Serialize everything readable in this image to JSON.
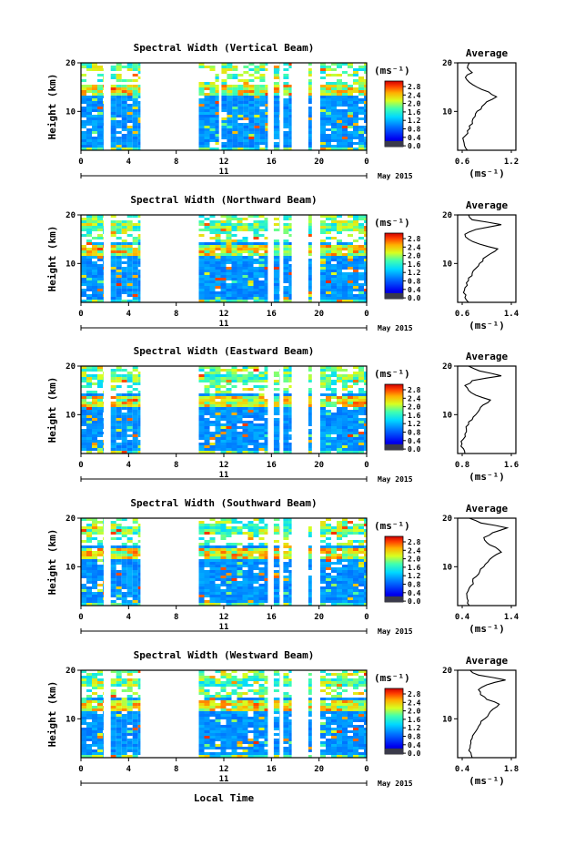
{
  "chart_data": [
    {
      "type": "heatmap",
      "title": "Spectral Width (Vertical Beam)",
      "xlabel": "",
      "ylabel": "Height (km)",
      "xlim": [
        0,
        24
      ],
      "ylim": [
        2,
        20
      ],
      "x_ticks": [
        "0",
        "4",
        "8",
        "12",
        "16",
        "20",
        "0"
      ],
      "y_ticks": [
        "20",
        "10"
      ],
      "date_day": "11",
      "date_label": "May 2015",
      "colorbar": {
        "unit": "(ms⁻¹)",
        "ticks": [
          "2.8",
          "2.4",
          "2.0",
          "1.6",
          "1.2",
          "0.8",
          "0.4",
          "0.0"
        ]
      },
      "data_intervals": [
        [
          0,
          1.9
        ],
        [
          2.5,
          5.0
        ],
        [
          9.9,
          11.6
        ],
        [
          11.8,
          15.7
        ],
        [
          16.2,
          16.7
        ],
        [
          17.0,
          17.7
        ],
        [
          19.1,
          19.4
        ],
        [
          20.1,
          24
        ]
      ],
      "average": {
        "title": "Average",
        "xlabel": "(ms⁻¹)",
        "x_ticks": [
          "0.6",
          "1.2"
        ],
        "xlim": [
          0.6,
          1.2
        ],
        "y_ticks": [
          "20",
          "10"
        ],
        "ylim": [
          2,
          20
        ],
        "height": [
          2,
          3,
          4,
          5,
          6,
          7,
          8,
          9,
          10,
          11,
          12,
          13,
          14,
          15,
          16,
          17,
          18,
          19,
          20
        ],
        "value": [
          0.7,
          0.67,
          0.66,
          0.68,
          0.7,
          0.72,
          0.75,
          0.78,
          0.8,
          0.85,
          0.9,
          1.0,
          0.92,
          0.8,
          0.72,
          0.68,
          0.75,
          0.7,
          0.72
        ]
      }
    },
    {
      "type": "heatmap",
      "title": "Spectral Width (Northward Beam)",
      "xlabel": "",
      "ylabel": "Height (km)",
      "xlim": [
        0,
        24
      ],
      "ylim": [
        2,
        20
      ],
      "x_ticks": [
        "0",
        "4",
        "8",
        "12",
        "16",
        "20",
        "0"
      ],
      "y_ticks": [
        "20",
        "10"
      ],
      "date_day": "11",
      "date_label": "May 2015",
      "colorbar": {
        "unit": "(ms⁻¹)",
        "ticks": [
          "2.8",
          "2.4",
          "2.0",
          "1.6",
          "1.2",
          "0.8",
          "0.4",
          "0.0"
        ]
      },
      "data_intervals": [
        [
          0,
          1.9
        ],
        [
          2.5,
          5.0
        ],
        [
          9.9,
          15.7
        ],
        [
          16.2,
          16.7
        ],
        [
          17.0,
          17.7
        ],
        [
          19.1,
          19.4
        ],
        [
          20.1,
          24
        ]
      ],
      "average": {
        "title": "Average",
        "xlabel": "(ms⁻¹)",
        "x_ticks": [
          "0.6",
          "1.4"
        ],
        "xlim": [
          0.6,
          1.4
        ],
        "y_ticks": [
          "20",
          "10"
        ],
        "ylim": [
          2,
          20
        ],
        "height": [
          2,
          3,
          4,
          5,
          6,
          7,
          8,
          9,
          10,
          11,
          12,
          13,
          14,
          15,
          16,
          17,
          18,
          19,
          20
        ],
        "value": [
          0.75,
          0.7,
          0.68,
          0.7,
          0.72,
          0.75,
          0.8,
          0.85,
          0.9,
          0.95,
          1.05,
          1.15,
          0.9,
          0.75,
          0.7,
          0.85,
          1.2,
          0.8,
          0.75
        ]
      }
    },
    {
      "type": "heatmap",
      "title": "Spectral Width (Eastward Beam)",
      "xlabel": "",
      "ylabel": "Height (km)",
      "xlim": [
        0,
        24
      ],
      "ylim": [
        2,
        20
      ],
      "x_ticks": [
        "0",
        "4",
        "8",
        "12",
        "16",
        "20",
        "0"
      ],
      "y_ticks": [
        "20",
        "10"
      ],
      "date_day": "11",
      "date_label": "May 2015",
      "colorbar": {
        "unit": "(ms⁻¹)",
        "ticks": [
          "2.8",
          "2.4",
          "2.0",
          "1.6",
          "1.2",
          "0.8",
          "0.4",
          "0.0"
        ]
      },
      "data_intervals": [
        [
          0,
          1.9
        ],
        [
          2.5,
          5.0
        ],
        [
          9.9,
          15.7
        ],
        [
          16.2,
          16.7
        ],
        [
          17.0,
          17.7
        ],
        [
          19.1,
          19.4
        ],
        [
          20.1,
          24
        ]
      ],
      "average": {
        "title": "Average",
        "xlabel": "(ms⁻¹)",
        "x_ticks": [
          "0.8",
          "1.6"
        ],
        "xlim": [
          0.8,
          1.6
        ],
        "y_ticks": [
          "20",
          "10"
        ],
        "ylim": [
          2,
          20
        ],
        "height": [
          2,
          3,
          4,
          5,
          6,
          7,
          8,
          9,
          10,
          11,
          12,
          13,
          14,
          15,
          16,
          17,
          18,
          19,
          20
        ],
        "value": [
          0.9,
          0.88,
          0.86,
          0.88,
          0.9,
          0.92,
          0.95,
          1.0,
          1.05,
          1.1,
          1.15,
          1.25,
          1.05,
          0.95,
          0.9,
          1.0,
          1.4,
          1.1,
          0.95
        ]
      }
    },
    {
      "type": "heatmap",
      "title": "Spectral Width (Southward Beam)",
      "xlabel": "",
      "ylabel": "Height (km)",
      "xlim": [
        0,
        24
      ],
      "ylim": [
        2,
        20
      ],
      "x_ticks": [
        "0",
        "4",
        "8",
        "12",
        "16",
        "20",
        "0"
      ],
      "y_ticks": [
        "20",
        "10"
      ],
      "date_day": "11",
      "date_label": "May 2015",
      "colorbar": {
        "unit": "(ms⁻¹)",
        "ticks": [
          "2.8",
          "2.4",
          "2.0",
          "1.6",
          "1.2",
          "0.8",
          "0.4",
          "0.0"
        ]
      },
      "data_intervals": [
        [
          0,
          1.9
        ],
        [
          2.5,
          5.0
        ],
        [
          9.9,
          15.7
        ],
        [
          16.2,
          16.7
        ],
        [
          17.0,
          17.7
        ],
        [
          19.1,
          19.4
        ],
        [
          20.1,
          24
        ]
      ],
      "average": {
        "title": "Average",
        "xlabel": "(ms⁻¹)",
        "x_ticks": [
          "0.4",
          "1.4"
        ],
        "xlim": [
          0.4,
          1.4
        ],
        "y_ticks": [
          "20",
          "10"
        ],
        "ylim": [
          2,
          20
        ],
        "height": [
          2,
          3,
          4,
          5,
          6,
          7,
          8,
          9,
          10,
          11,
          12,
          13,
          14,
          15,
          16,
          17,
          18,
          19,
          20
        ],
        "value": [
          0.6,
          0.58,
          0.56,
          0.58,
          0.62,
          0.66,
          0.72,
          0.78,
          0.85,
          0.92,
          1.0,
          1.15,
          1.05,
          0.9,
          0.85,
          1.0,
          1.25,
          0.8,
          0.6
        ]
      }
    },
    {
      "type": "heatmap",
      "title": "Spectral Width (Westward Beam)",
      "xlabel": "Local Time",
      "ylabel": "Height (km)",
      "xlim": [
        0,
        24
      ],
      "ylim": [
        2,
        20
      ],
      "x_ticks": [
        "0",
        "4",
        "8",
        "12",
        "16",
        "20",
        "0"
      ],
      "y_ticks": [
        "20",
        "10"
      ],
      "date_day": "11",
      "date_label": "May 2015",
      "colorbar": {
        "unit": "(ms⁻¹)",
        "ticks": [
          "2.8",
          "2.4",
          "2.0",
          "1.6",
          "1.2",
          "0.8",
          "0.4",
          "0.0"
        ]
      },
      "data_intervals": [
        [
          0,
          1.9
        ],
        [
          2.5,
          5.0
        ],
        [
          9.9,
          15.7
        ],
        [
          16.2,
          16.7
        ],
        [
          17.0,
          17.7
        ],
        [
          19.1,
          19.4
        ],
        [
          20.1,
          24
        ]
      ],
      "average": {
        "title": "Average",
        "xlabel": "(ms⁻¹)",
        "x_ticks": [
          "0.4",
          "1.8"
        ],
        "xlim": [
          0.4,
          1.8
        ],
        "y_ticks": [
          "20",
          "10"
        ],
        "ylim": [
          2,
          20
        ],
        "height": [
          2,
          3,
          4,
          5,
          6,
          7,
          8,
          9,
          10,
          11,
          12,
          13,
          14,
          15,
          16,
          17,
          18,
          19,
          20
        ],
        "value": [
          0.75,
          0.72,
          0.7,
          0.72,
          0.75,
          0.8,
          0.88,
          0.95,
          1.05,
          1.15,
          1.25,
          1.4,
          1.1,
          0.95,
          0.9,
          1.1,
          1.55,
          0.9,
          0.7
        ]
      }
    }
  ]
}
